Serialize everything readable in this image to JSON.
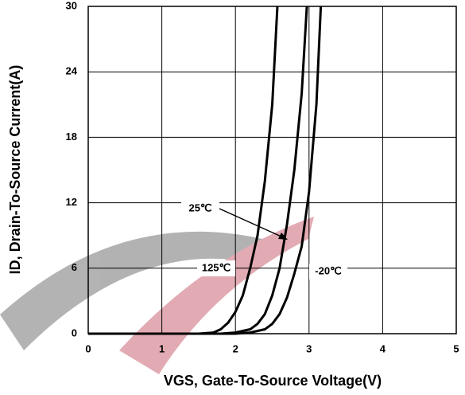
{
  "chart_data": {
    "type": "line",
    "xlabel": "VGS, Gate-To-Source Voltage(V)",
    "ylabel": "ID, Drain-To-Source Current(A)",
    "xlim": [
      0,
      5
    ],
    "xticks": [
      0,
      1,
      2,
      3,
      4,
      5
    ],
    "ylim": [
      0,
      30
    ],
    "yticks": [
      0,
      6,
      12,
      18,
      24,
      30
    ],
    "grid": true,
    "series": [
      {
        "name": "125℃",
        "color": "#000000",
        "x": [
          0,
          1.5,
          1.7,
          1.8,
          1.9,
          2.0,
          2.1,
          2.2,
          2.3,
          2.4,
          2.5,
          2.57
        ],
        "values": [
          0,
          0,
          0.1,
          0.4,
          1,
          2,
          3.5,
          6,
          9,
          14,
          21,
          30
        ]
      },
      {
        "name": "25℃",
        "color": "#000000",
        "x": [
          0,
          1.8,
          2.0,
          2.2,
          2.3,
          2.4,
          2.5,
          2.6,
          2.7,
          2.8,
          2.9,
          2.97
        ],
        "values": [
          0,
          0,
          0.1,
          0.4,
          0.9,
          1.8,
          3.5,
          6,
          10,
          15,
          22,
          30
        ]
      },
      {
        "name": "-20℃",
        "color": "#000000",
        "x": [
          0,
          2.0,
          2.2,
          2.4,
          2.5,
          2.6,
          2.7,
          2.8,
          2.9,
          3.0,
          3.1,
          3.16
        ],
        "values": [
          0,
          0,
          0.1,
          0.4,
          0.9,
          1.8,
          3.3,
          5.5,
          8,
          13,
          21,
          30
        ]
      }
    ]
  }
}
